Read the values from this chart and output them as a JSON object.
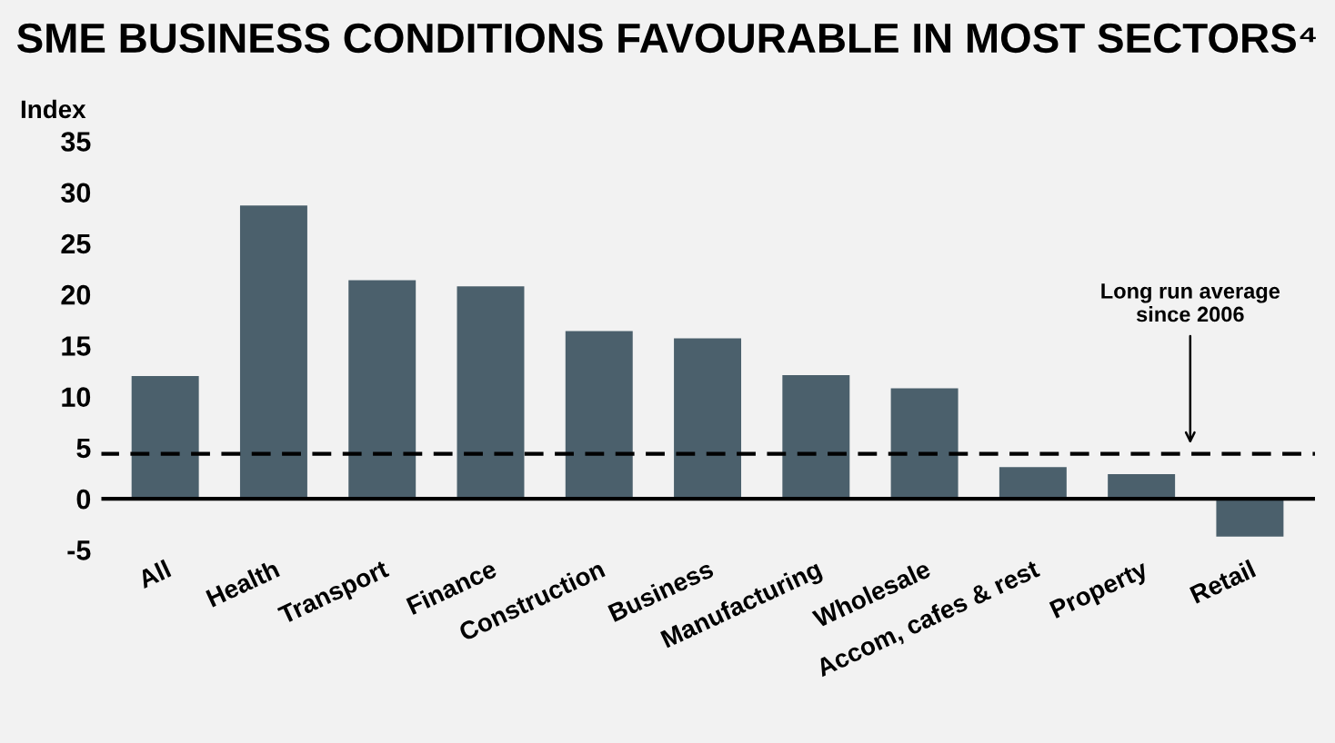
{
  "chart_data": {
    "type": "bar",
    "title": "SME BUSINESS CONDITIONS FAVOURABLE IN MOST SECTORS⁴",
    "ylabel": "Index",
    "categories": [
      "All",
      "Health",
      "Transport",
      "Finance",
      "Construction",
      "Business",
      "Manufacturing",
      "Wholesale",
      "Accom, cafes & rest",
      "Property",
      "Retail"
    ],
    "values": [
      12,
      28.7,
      21.4,
      20.8,
      16.4,
      15.7,
      12.1,
      10.8,
      3.1,
      2.4,
      -3.7
    ],
    "color": "#4b606c",
    "ylim": [
      -5,
      35
    ],
    "yticks": [
      -5,
      0,
      5,
      10,
      15,
      20,
      25,
      30,
      35
    ],
    "grid": false,
    "ref_lines": [
      {
        "axis": "y",
        "value": 4.4,
        "label": "Long run average\nsince 2006",
        "color": "#000000",
        "line_style": "dashed"
      }
    ]
  }
}
